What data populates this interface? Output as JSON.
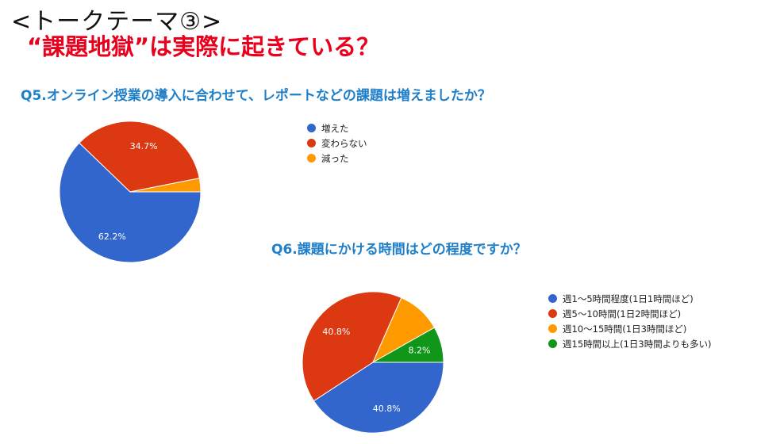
{
  "header": {
    "title": "<トークテーマ③>",
    "subtitle": "“課題地獄”は実際に起きている？"
  },
  "chart_data": [
    {
      "type": "pie",
      "title": "Q5.オンライン授業の導入に合わせて、レポートなどの課題は増えましたか？",
      "categories": [
        "増えた",
        "変わらない",
        "減った"
      ],
      "values": [
        62.2,
        34.7,
        3.1
      ],
      "data_labels": [
        "62.2%",
        "34.7%",
        ""
      ],
      "colors": [
        "#3366cc",
        "#dc3912",
        "#ff9900"
      ],
      "legend": "right"
    },
    {
      "type": "pie",
      "title": "Q6.課題にかける時間はどの程度ですか？",
      "categories": [
        "週1〜5時間程度(1日1時間ほど)",
        "週5〜10時間(1日2時間ほど)",
        "週10〜15時間(1日3時間ほど)",
        "週15時間以上(1日3時間よりも多い)"
      ],
      "values": [
        40.8,
        40.8,
        10.2,
        8.2
      ],
      "data_labels": [
        "40.8%",
        "40.8%",
        "",
        "8.2%"
      ],
      "colors": [
        "#3366cc",
        "#dc3912",
        "#ff9900",
        "#109618"
      ],
      "legend": "right"
    }
  ]
}
